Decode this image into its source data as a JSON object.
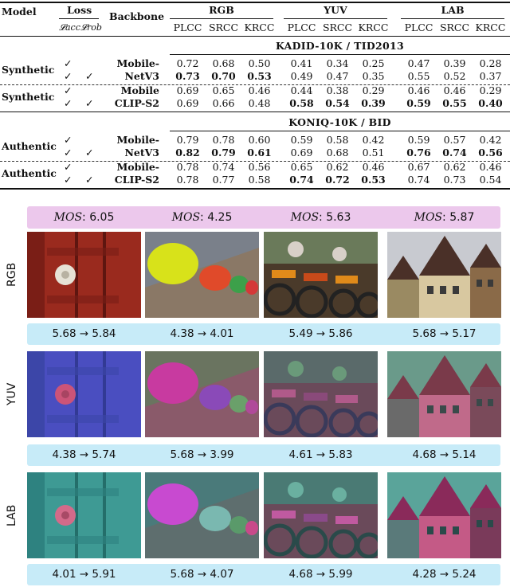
{
  "table": {
    "headers": {
      "model": "Model",
      "loss": "Loss",
      "loss_acc": "𝓛acc",
      "loss_rob": "𝓛rob",
      "backbone": "Backbone",
      "spaces": [
        "RGB",
        "YUV",
        "LAB"
      ],
      "metrics": [
        "PLCC",
        "SRCC",
        "KRCC"
      ]
    },
    "check": "✓",
    "sections": [
      {
        "title": "KADID-10K / TID2013",
        "groups": [
          {
            "model": "Synthetic",
            "backbone": [
              "Mobile-",
              "NetV3"
            ],
            "rows": [
              {
                "acc": "✓",
                "rob": "",
                "values": [
                  "0.72",
                  "0.68",
                  "0.50",
                  "0.41",
                  "0.34",
                  "0.25",
                  "0.47",
                  "0.39",
                  "0.28"
                ],
                "bold": [
                  false,
                  false,
                  false,
                  false,
                  false,
                  false,
                  false,
                  false,
                  false
                ]
              },
              {
                "acc": "✓",
                "rob": "✓",
                "values": [
                  "0.73",
                  "0.70",
                  "0.53",
                  "0.49",
                  "0.47",
                  "0.35",
                  "0.55",
                  "0.52",
                  "0.37"
                ],
                "bold": [
                  true,
                  true,
                  true,
                  false,
                  false,
                  false,
                  false,
                  false,
                  false
                ]
              }
            ]
          },
          {
            "model": "Synthetic",
            "backbone": [
              "Mobile",
              "CLIP-S2"
            ],
            "rows": [
              {
                "acc": "✓",
                "rob": "",
                "values": [
                  "0.69",
                  "0.65",
                  "0.46",
                  "0.44",
                  "0.38",
                  "0.29",
                  "0.46",
                  "0.46",
                  "0.29"
                ],
                "bold": [
                  false,
                  false,
                  false,
                  false,
                  false,
                  false,
                  false,
                  false,
                  false
                ]
              },
              {
                "acc": "✓",
                "rob": "✓",
                "values": [
                  "0.69",
                  "0.66",
                  "0.48",
                  "0.58",
                  "0.54",
                  "0.39",
                  "0.59",
                  "0.55",
                  "0.40"
                ],
                "bold": [
                  false,
                  false,
                  false,
                  true,
                  true,
                  true,
                  true,
                  true,
                  true
                ]
              }
            ]
          }
        ]
      },
      {
        "title": "KONIQ-10K / BID",
        "groups": [
          {
            "model": "Authentic",
            "backbone": [
              "Mobile-",
              "NetV3"
            ],
            "rows": [
              {
                "acc": "✓",
                "rob": "",
                "values": [
                  "0.79",
                  "0.78",
                  "0.60",
                  "0.59",
                  "0.58",
                  "0.42",
                  "0.59",
                  "0.57",
                  "0.42"
                ],
                "bold": [
                  false,
                  false,
                  false,
                  false,
                  false,
                  false,
                  false,
                  false,
                  false
                ]
              },
              {
                "acc": "✓",
                "rob": "✓",
                "values": [
                  "0.82",
                  "0.79",
                  "0.61",
                  "0.69",
                  "0.68",
                  "0.51",
                  "0.76",
                  "0.74",
                  "0.56"
                ],
                "bold": [
                  true,
                  true,
                  true,
                  false,
                  false,
                  false,
                  true,
                  true,
                  true
                ]
              }
            ]
          },
          {
            "model": "Authentic",
            "backbone": [
              "Mobile-",
              "CLIP-S2"
            ],
            "rows": [
              {
                "acc": "✓",
                "rob": "",
                "values": [
                  "0.78",
                  "0.74",
                  "0.56",
                  "0.65",
                  "0.62",
                  "0.46",
                  "0.67",
                  "0.62",
                  "0.46"
                ],
                "bold": [
                  false,
                  false,
                  false,
                  false,
                  false,
                  false,
                  false,
                  false,
                  false
                ]
              },
              {
                "acc": "✓",
                "rob": "✓",
                "values": [
                  "0.78",
                  "0.77",
                  "0.58",
                  "0.74",
                  "0.72",
                  "0.53",
                  "0.74",
                  "0.73",
                  "0.54"
                ],
                "bold": [
                  false,
                  false,
                  false,
                  true,
                  true,
                  true,
                  false,
                  false,
                  false
                ]
              }
            ]
          }
        ]
      }
    ]
  },
  "figure": {
    "mos_label": "MOS",
    "mos": [
      "6.05",
      "4.25",
      "5.63",
      "5.87"
    ],
    "rows": [
      {
        "label": "RGB",
        "scores": [
          "5.68 → 5.84",
          "4.38 → 4.01",
          "5.49 → 5.86",
          "5.68 → 5.17"
        ]
      },
      {
        "label": "YUV",
        "scores": [
          "4.38 → 5.74",
          "5.68 → 3.99",
          "4.61 → 5.83",
          "4.68 → 5.14"
        ]
      },
      {
        "label": "LAB",
        "scores": [
          "4.01 → 5.91",
          "5.68 → 4.07",
          "4.68 → 5.99",
          "4.28 → 5.24"
        ]
      }
    ],
    "colors": {
      "mos_bar": "#ecc8ec",
      "score_bar": "#c7ebf8"
    }
  }
}
